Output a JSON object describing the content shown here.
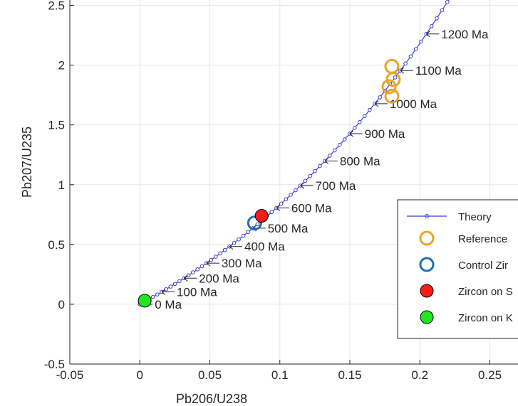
{
  "chart_data": {
    "type": "scatter",
    "title": "",
    "xlabel": "Pb206/U238",
    "ylabel": "Pb207/U235",
    "xlim": [
      -0.05,
      0.265
    ],
    "ylim": [
      -0.5,
      2.53
    ],
    "x_ticks": [
      -0.05,
      0,
      0.05,
      0.1,
      0.15,
      0.2,
      0.25
    ],
    "x_tick_labels": [
      "-0.05",
      "0",
      "0.05",
      "0.1",
      "0.15",
      "0.2",
      "0.25"
    ],
    "y_ticks": [
      -0.5,
      0,
      0.5,
      1,
      1.5,
      2,
      2.5
    ],
    "y_tick_labels": [
      "-0.5",
      "0",
      "0.5",
      "1",
      "1.5",
      "2",
      "2.5"
    ],
    "grid": true,
    "legend_position": "right",
    "series": [
      {
        "name": "Theory",
        "kind": "concordia-line",
        "color": "#3b3bd1",
        "age_min_ma": 0,
        "age_max_ma": 1300,
        "age_step_ma": 20
      },
      {
        "name": "Reference",
        "kind": "open-circle",
        "color": "#e6a52a",
        "points": [
          {
            "x": 0.18,
            "y": 1.99
          },
          {
            "x": 0.181,
            "y": 1.88
          },
          {
            "x": 0.178,
            "y": 1.82
          },
          {
            "x": 0.18,
            "y": 1.74
          }
        ]
      },
      {
        "name": "Control Zir",
        "kind": "open-circle",
        "color": "#1d6fb8",
        "points": [
          {
            "x": 0.082,
            "y": 0.68
          }
        ]
      },
      {
        "name": "Zircon on S",
        "kind": "filled-circle",
        "color": "#ff1a1a",
        "points": [
          {
            "x": 0.087,
            "y": 0.74
          }
        ]
      },
      {
        "name": "Zircon on K",
        "kind": "filled-circle",
        "color": "#22e622",
        "points": [
          {
            "x": 0.0035,
            "y": 0.03
          }
        ]
      }
    ],
    "age_markers": [
      {
        "age": 0,
        "label": "0 Ma"
      },
      {
        "age": 100,
        "label": "100 Ma"
      },
      {
        "age": 200,
        "label": "200 Ma"
      },
      {
        "age": 300,
        "label": "300 Ma"
      },
      {
        "age": 400,
        "label": "400 Ma"
      },
      {
        "age": 500,
        "label": "500 Ma"
      },
      {
        "age": 600,
        "label": "600 Ma"
      },
      {
        "age": 700,
        "label": "700 Ma"
      },
      {
        "age": 800,
        "label": "800 Ma"
      },
      {
        "age": 900,
        "label": "900 Ma"
      },
      {
        "age": 1000,
        "label": "1000 Ma"
      },
      {
        "age": 1100,
        "label": "1100 Ma"
      },
      {
        "age": 1200,
        "label": "1200 Ma"
      }
    ]
  }
}
